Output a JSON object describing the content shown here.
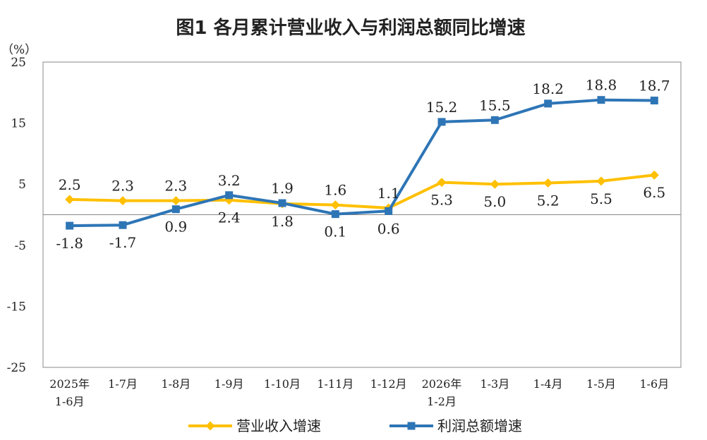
{
  "chart_data": {
    "type": "line",
    "title": "图1  各月累计营业收入与利润总额同比增速",
    "unit": "（%）",
    "ylim": [
      -25,
      25
    ],
    "yticks": [
      -25,
      -15,
      -5,
      5,
      15,
      25
    ],
    "categories": [
      [
        "2025年",
        "1-6月"
      ],
      [
        "1-7月"
      ],
      [
        "1-8月"
      ],
      [
        "1-9月"
      ],
      [
        "1-10月"
      ],
      [
        "1-11月"
      ],
      [
        "1-12月"
      ],
      [
        "2026年",
        "1-2月"
      ],
      [
        "1-3月"
      ],
      [
        "1-4月"
      ],
      [
        "1-5月"
      ],
      [
        "1-6月"
      ]
    ],
    "series": [
      {
        "name": "营业收入增速",
        "color": "#FFC000",
        "marker": "diamond",
        "values": [
          2.5,
          2.3,
          2.3,
          2.4,
          1.8,
          1.6,
          1.1,
          5.3,
          5.0,
          5.2,
          5.5,
          6.5
        ],
        "labels": [
          "2.5",
          "2.3",
          "2.3",
          "2.4",
          "1.8",
          "1.6",
          "1.1",
          "5.3",
          "5.0",
          "5.2",
          "5.5",
          "6.5"
        ]
      },
      {
        "name": "利润总额增速",
        "color": "#2E75B6",
        "marker": "square",
        "values": [
          -1.8,
          -1.7,
          0.9,
          3.2,
          1.9,
          0.1,
          0.6,
          15.2,
          15.5,
          18.2,
          18.8,
          18.7
        ],
        "labels": [
          "-1.8",
          "-1.7",
          "0.9",
          "3.2",
          "1.9",
          "0.1",
          "0.6",
          "15.2",
          "15.5",
          "18.2",
          "18.8",
          "18.7"
        ]
      }
    ],
    "legend": "bottom",
    "grid": false
  }
}
